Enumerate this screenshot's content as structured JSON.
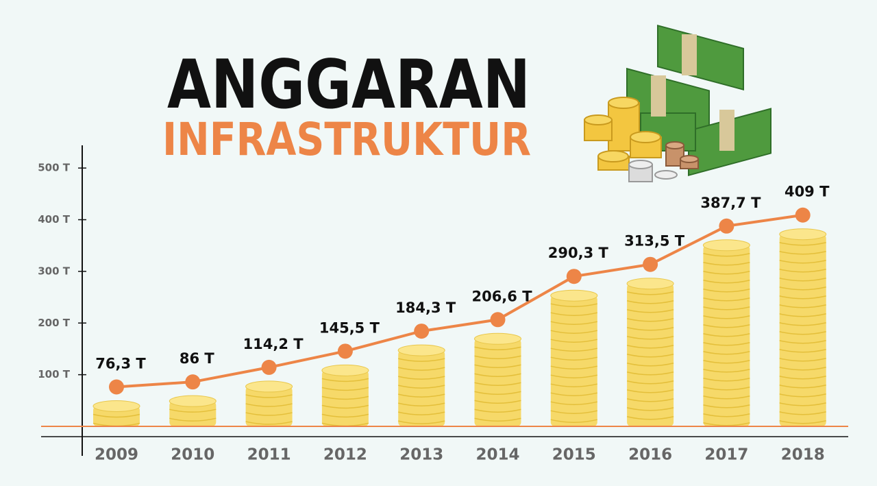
{
  "chart_data": {
    "type": "line",
    "title": "ANGGARAN",
    "subtitle": "INFRASTRUKTUR",
    "categories": [
      "2009",
      "2010",
      "2011",
      "2012",
      "2013",
      "2014",
      "2015",
      "2016",
      "2017",
      "2018"
    ],
    "values": [
      76.3,
      86,
      114.2,
      145.5,
      184.3,
      206.6,
      290.3,
      313.5,
      387.7,
      409
    ],
    "value_labels": [
      "76,3 T",
      "86 T",
      "114,2 T",
      "145,5 T",
      "184,3 T",
      "206,6 T",
      "290,3 T",
      "313,5 T",
      "387,7 T",
      "409 T"
    ],
    "color": "#ed8547",
    "ylim": [
      0,
      540
    ],
    "yticks": [
      {
        "value": 100,
        "label": "100 T"
      },
      {
        "value": 200,
        "label": "200 T"
      },
      {
        "value": 300,
        "label": "300 T"
      },
      {
        "value": 400,
        "label": "400 T"
      },
      {
        "value": 500,
        "label": "500 T"
      }
    ]
  }
}
